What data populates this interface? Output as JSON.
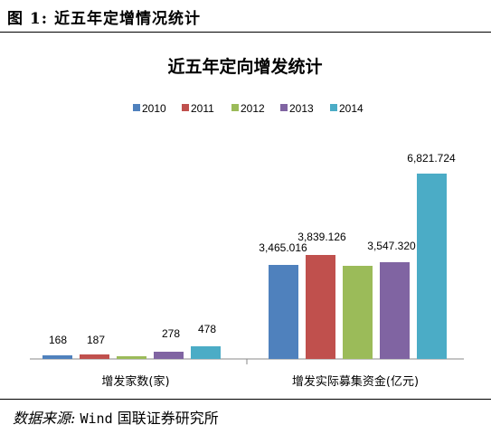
{
  "figure": {
    "label": "图 1:",
    "caption": "近五年定增情况统计"
  },
  "source": {
    "prefix": "数据来源:",
    "provider": "Wind",
    "institution": "国联证券研究所"
  },
  "chart_data": {
    "type": "bar",
    "title": "近五年定向增发统计",
    "categories": [
      "增发家数(家)",
      "增发实际募集资金(亿元)"
    ],
    "series": [
      {
        "name": "2010",
        "color": "#4F81BD",
        "values": [
          168,
          3465.016
        ],
        "labels": [
          "168",
          "3,465.016"
        ]
      },
      {
        "name": "2011",
        "color": "#C0504D",
        "values": [
          187,
          3839.126
        ],
        "labels": [
          "187",
          "3,839.126"
        ]
      },
      {
        "name": "2012",
        "color": "#9BBB59",
        "values": [
          null,
          null
        ],
        "labels": [
          "",
          ""
        ]
      },
      {
        "name": "2013",
        "color": "#8064A2",
        "values": [
          278,
          3547.32
        ],
        "labels": [
          "278",
          "3,547.320"
        ]
      },
      {
        "name": "2014",
        "color": "#4BACC6",
        "values": [
          478,
          6821.724
        ],
        "labels": [
          "478",
          "6,821.724"
        ]
      }
    ],
    "legend_position": "top",
    "grid": false
  }
}
